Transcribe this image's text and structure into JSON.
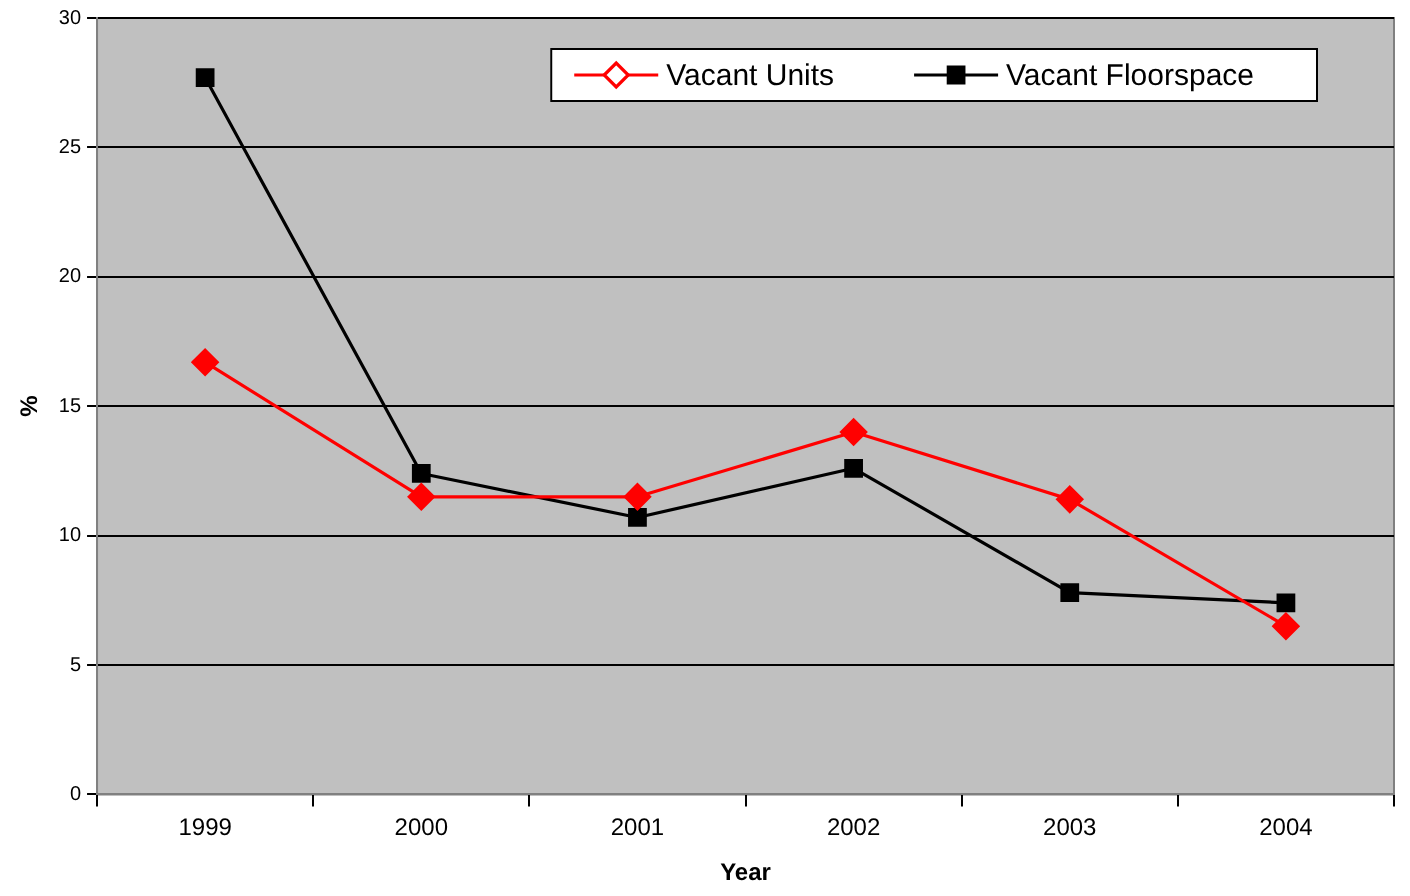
{
  "chart_data": {
    "type": "line",
    "xlabel": "Year",
    "ylabel": "%",
    "categories": [
      "1999",
      "2000",
      "2001",
      "2002",
      "2003",
      "2004"
    ],
    "series": [
      {
        "name": "Vacant Units",
        "color": "#ff0000",
        "marker": "diamond",
        "values": [
          16.7,
          11.5,
          11.5,
          14.0,
          11.4,
          6.5
        ]
      },
      {
        "name": "Vacant Floorspace",
        "color": "#000000",
        "marker": "square",
        "values": [
          27.7,
          12.4,
          10.7,
          12.6,
          7.8,
          7.4
        ]
      }
    ],
    "ylim": [
      0,
      30
    ],
    "yticks": [
      0,
      5,
      10,
      15,
      20,
      25,
      30
    ],
    "grid": "y",
    "legend": "top right"
  }
}
